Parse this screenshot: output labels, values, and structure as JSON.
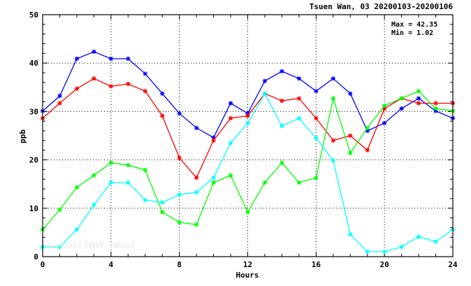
{
  "chart_data": {
    "type": "line",
    "title": "Tsuen Wan, 03 20200103-20200106",
    "xlabel": "Hours",
    "ylabel": "ppb",
    "xlim": [
      0,
      24
    ],
    "ylim": [
      0,
      50
    ],
    "xticks": [
      0,
      4,
      8,
      12,
      16,
      20,
      24
    ],
    "yticks": [
      0,
      10,
      20,
      30,
      40,
      50
    ],
    "grid": true,
    "stats": {
      "max_label": "Max = 42.35",
      "min_label": "Min =  1.02"
    },
    "watermark": "© HKUST ENVF, HKUST",
    "x": [
      0,
      1,
      2,
      3,
      4,
      5,
      6,
      7,
      8,
      9,
      10,
      11,
      12,
      13,
      14,
      15,
      16,
      17,
      18,
      19,
      20,
      21,
      22,
      23,
      24
    ],
    "series": [
      {
        "color": "#0000ff",
        "values": [
          30.1,
          33.2,
          40.9,
          42.35,
          40.9,
          40.9,
          37.8,
          33.7,
          29.6,
          26.6,
          24.6,
          31.7,
          29.6,
          36.3,
          38.3,
          36.8,
          34.2,
          36.8,
          33.7,
          26.0,
          27.6,
          30.6,
          32.7,
          30.1,
          28.6
        ]
      },
      {
        "color": "#ff0000",
        "values": [
          28.6,
          31.7,
          34.7,
          36.8,
          35.2,
          35.7,
          34.2,
          29.1,
          20.4,
          16.3,
          24.0,
          28.6,
          29.1,
          33.7,
          32.2,
          32.7,
          28.6,
          24.0,
          25.0,
          22.0,
          30.6,
          32.7,
          31.7,
          31.7,
          31.7
        ]
      },
      {
        "color": "#00ff00",
        "values": [
          5.6,
          9.7,
          14.3,
          16.8,
          19.4,
          18.9,
          17.9,
          9.2,
          7.1,
          6.6,
          15.3,
          16.8,
          9.2,
          15.3,
          19.4,
          15.3,
          16.3,
          32.7,
          21.4,
          26.6,
          31.2,
          32.7,
          34.2,
          30.6,
          30.1
        ]
      },
      {
        "color": "#00ffff",
        "values": [
          2.0,
          2.0,
          5.6,
          10.7,
          15.3,
          15.3,
          11.7,
          11.2,
          12.8,
          13.3,
          16.3,
          23.5,
          27.6,
          33.7,
          27.0,
          28.6,
          24.5,
          19.9,
          4.6,
          1.02,
          1.02,
          2.0,
          4.1,
          3.1,
          5.6
        ]
      }
    ]
  }
}
